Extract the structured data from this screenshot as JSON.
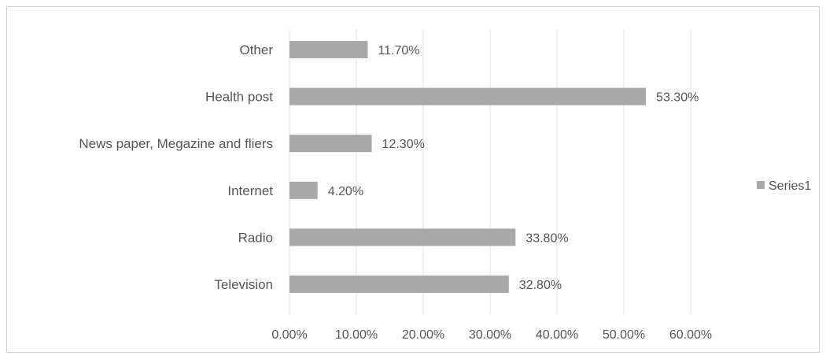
{
  "chart_data": {
    "type": "bar",
    "orientation": "horizontal",
    "categories": [
      "Other",
      "Health post",
      "News paper, Megazine and fliers",
      "Internet",
      "Radio",
      "Television"
    ],
    "series": [
      {
        "name": "Series1",
        "values": [
          11.7,
          53.3,
          12.3,
          4.2,
          33.8,
          32.8
        ]
      }
    ],
    "data_labels": [
      "11.70%",
      "53.30%",
      "12.30%",
      "4.20%",
      "33.80%",
      "32.80%"
    ],
    "x_ticks": [
      "0.00%",
      "10.00%",
      "20.00%",
      "30.00%",
      "40.00%",
      "50.00%",
      "60.00%"
    ],
    "xlim": [
      0,
      60
    ],
    "grid": true,
    "legend_position": "right",
    "colors": {
      "bar": "#a9a9a9",
      "grid": "#e2e2e2",
      "text": "#555555"
    }
  }
}
